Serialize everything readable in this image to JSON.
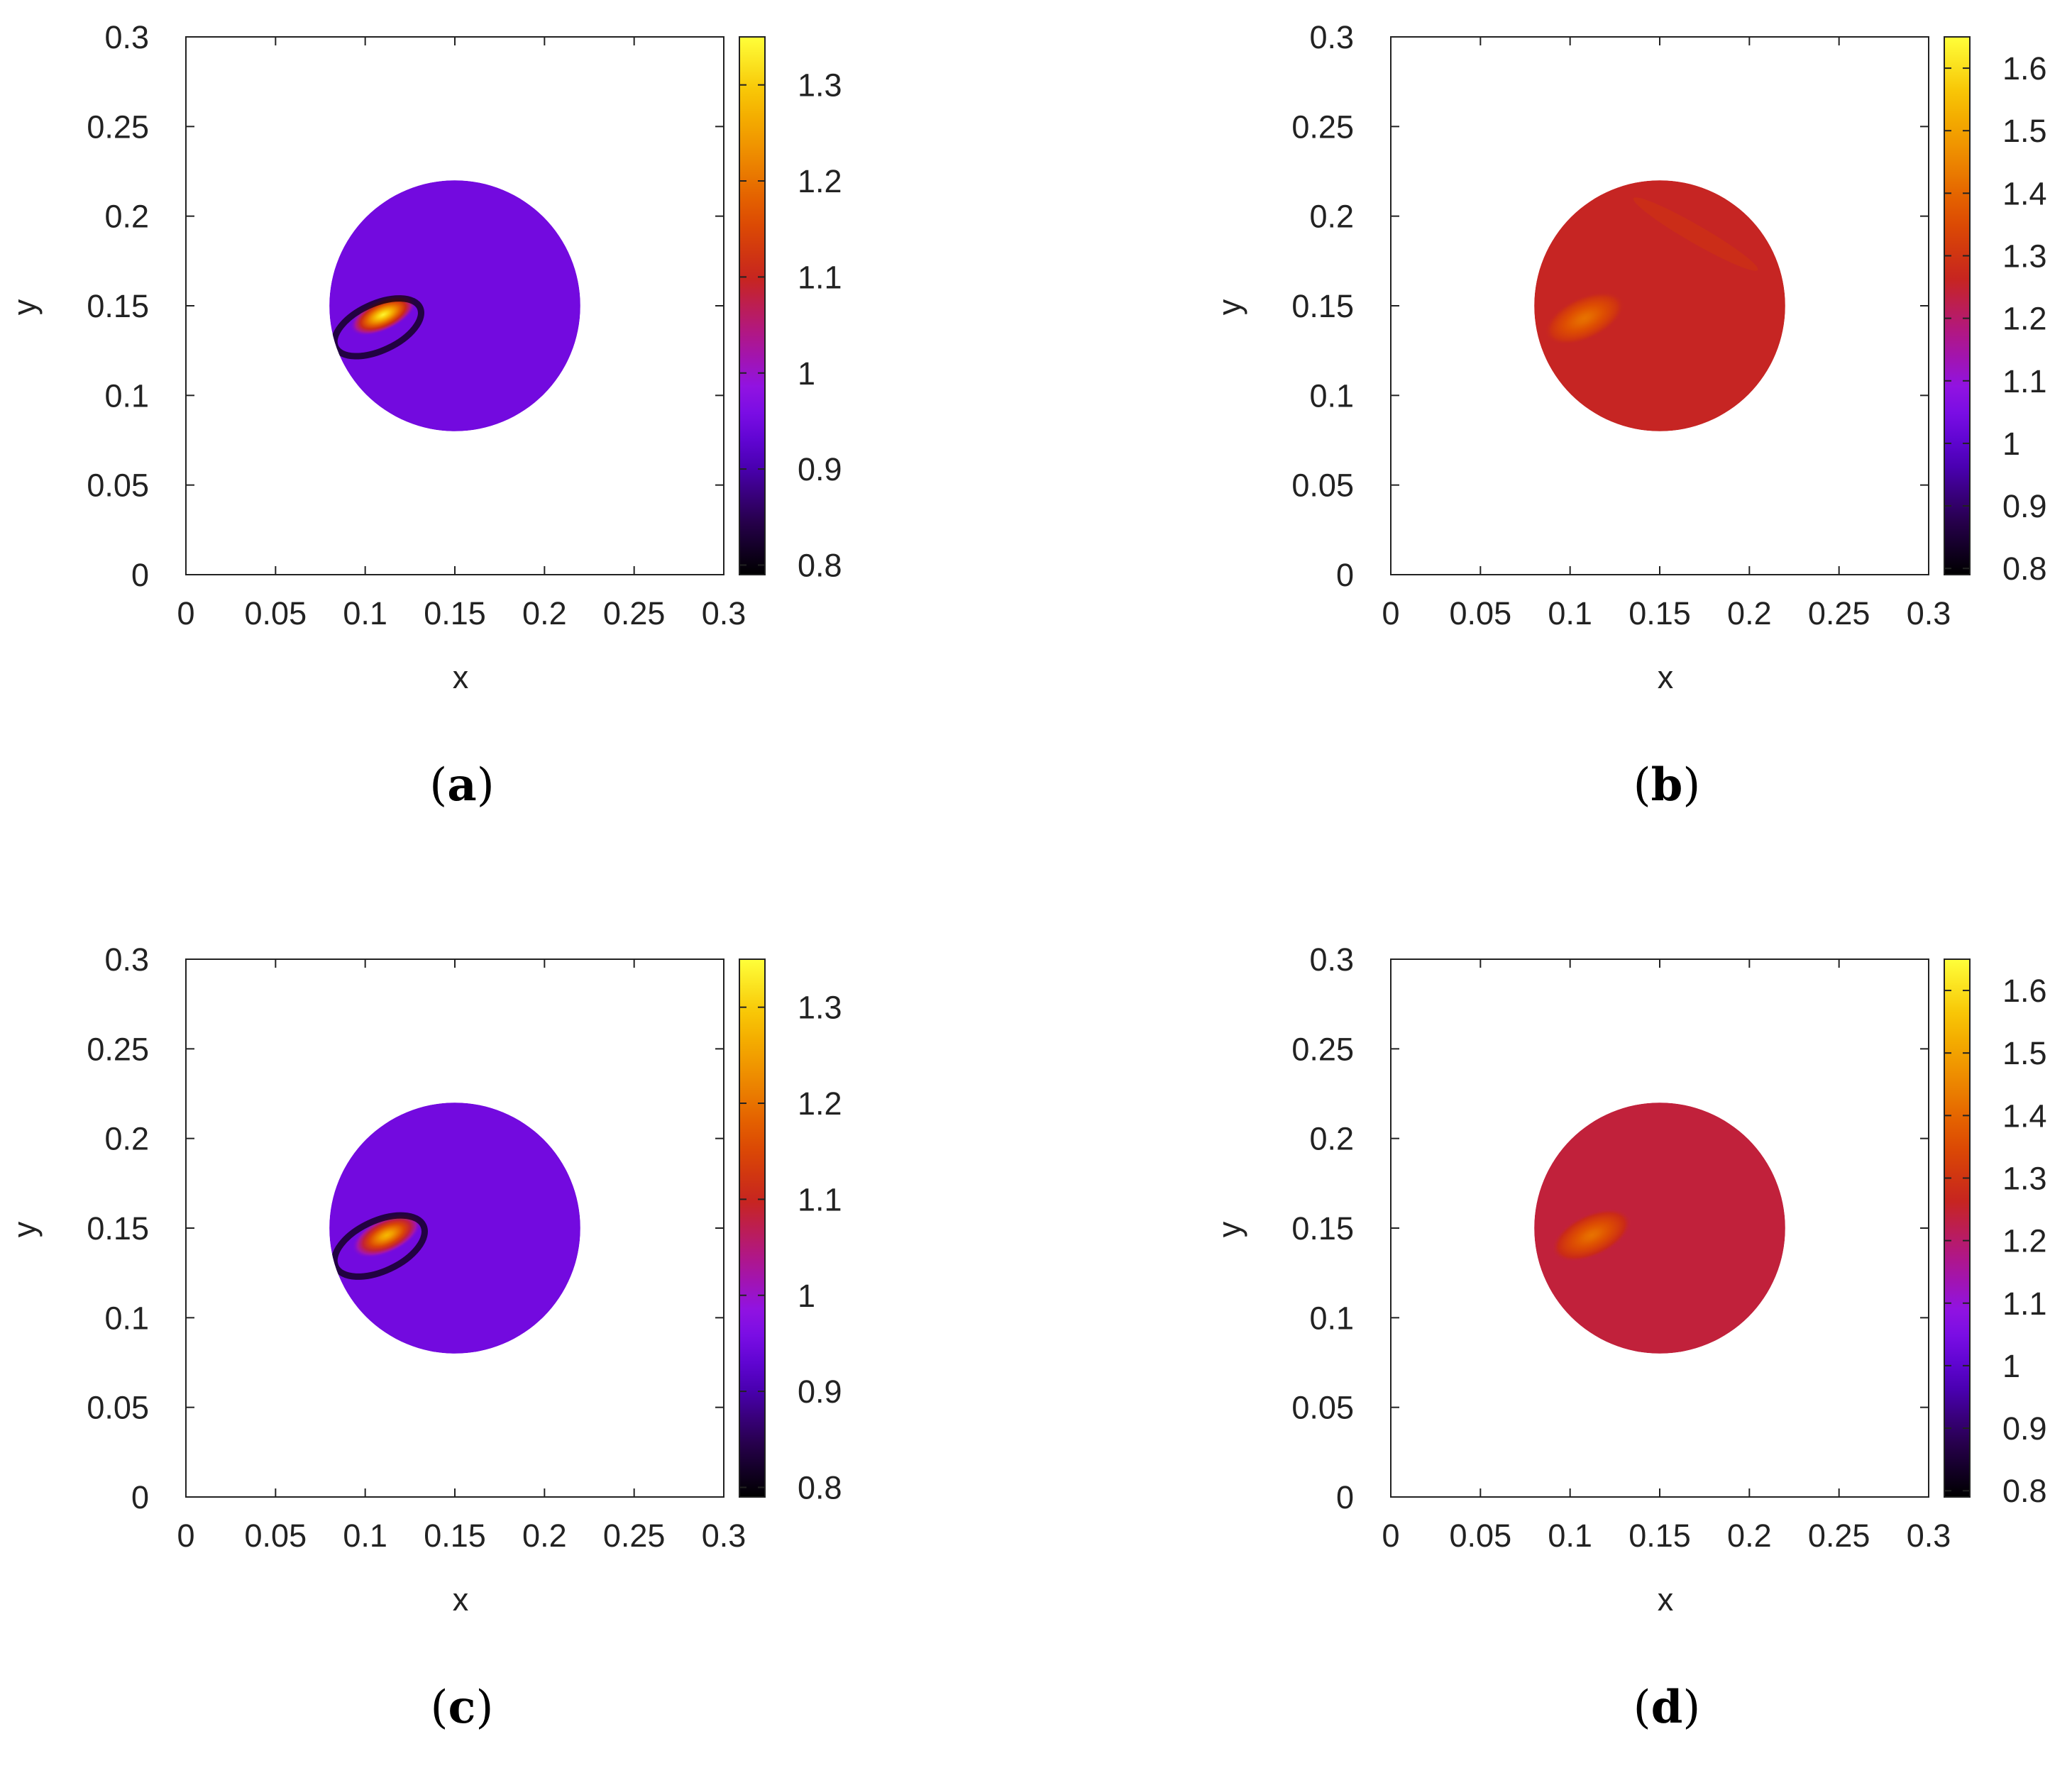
{
  "figure": {
    "panels": [
      {
        "id": "a",
        "caption_open": "(",
        "caption_letter": "a",
        "caption_close": ")",
        "colorbar_ticks": [
          "0.8",
          "0.9",
          "1",
          "1.1",
          "1.2",
          "1.3"
        ],
        "chart_data": {
          "type": "heatmap",
          "title": "",
          "xlabel": "x",
          "ylabel": "y",
          "xlim": [
            0,
            0.3
          ],
          "ylim": [
            0,
            0.3
          ],
          "xticks": [
            "0",
            "0.05",
            "0.1",
            "0.15",
            "0.2",
            "0.25",
            "0.3"
          ],
          "yticks": [
            "0",
            "0.05",
            "0.1",
            "0.15",
            "0.2",
            "0.25",
            "0.3"
          ],
          "colorbar": {
            "min": 0.79,
            "max": 1.35,
            "ticks": [
              0.8,
              0.9,
              1.0,
              1.1,
              1.2,
              1.3
            ]
          },
          "domain": {
            "shape": "disk",
            "center": [
              0.15,
              0.15
            ],
            "radius": 0.07
          },
          "background_value": 0.95,
          "features": [
            {
              "kind": "elliptical-blob",
              "center": [
                0.11,
                0.145
              ],
              "semi_axes": [
                0.02,
                0.009
              ],
              "angle_deg": 25,
              "peak_value": 1.34
            },
            {
              "kind": "dark-rim",
              "center": [
                0.107,
                0.138
              ],
              "semi_axes": [
                0.026,
                0.013
              ],
              "angle_deg": 25,
              "value": 0.8
            }
          ]
        }
      },
      {
        "id": "b",
        "caption_open": "(",
        "caption_letter": "b",
        "caption_close": ")",
        "colorbar_ticks": [
          "0.8",
          "0.9",
          "1",
          "1.1",
          "1.2",
          "1.3",
          "1.4",
          "1.5",
          "1.6"
        ],
        "chart_data": {
          "type": "heatmap",
          "title": "",
          "xlabel": "x",
          "ylabel": "y",
          "xlim": [
            0,
            0.3
          ],
          "ylim": [
            0,
            0.3
          ],
          "xticks": [
            "0",
            "0.05",
            "0.1",
            "0.15",
            "0.2",
            "0.25",
            "0.3"
          ],
          "yticks": [
            "0",
            "0.05",
            "0.1",
            "0.15",
            "0.2",
            "0.25",
            "0.3"
          ],
          "colorbar": {
            "min": 0.79,
            "max": 1.65,
            "ticks": [
              0.8,
              0.9,
              1.0,
              1.1,
              1.2,
              1.3,
              1.4,
              1.5,
              1.6
            ]
          },
          "domain": {
            "shape": "disk",
            "center": [
              0.15,
              0.15
            ],
            "radius": 0.07
          },
          "background_value": 1.26,
          "features": [
            {
              "kind": "elliptical-blob",
              "center": [
                0.108,
                0.143
              ],
              "semi_axes": [
                0.024,
                0.012
              ],
              "angle_deg": 25,
              "peak_value": 1.42
            },
            {
              "kind": "faint-streak",
              "center": [
                0.17,
                0.19
              ],
              "semi_axes": [
                0.04,
                0.005
              ],
              "angle_deg": -30,
              "value": 1.3
            }
          ]
        }
      },
      {
        "id": "c",
        "caption_open": "(",
        "caption_letter": "c",
        "caption_close": ")",
        "colorbar_ticks": [
          "0.8",
          "0.9",
          "1",
          "1.1",
          "1.2",
          "1.3"
        ],
        "chart_data": {
          "type": "heatmap",
          "title": "",
          "xlabel": "x",
          "ylabel": "y",
          "xlim": [
            0,
            0.3
          ],
          "ylim": [
            0,
            0.3
          ],
          "xticks": [
            "0",
            "0.05",
            "0.1",
            "0.15",
            "0.2",
            "0.25",
            "0.3"
          ],
          "yticks": [
            "0",
            "0.05",
            "0.1",
            "0.15",
            "0.2",
            "0.25",
            "0.3"
          ],
          "colorbar": {
            "min": 0.79,
            "max": 1.35,
            "ticks": [
              0.8,
              0.9,
              1.0,
              1.1,
              1.2,
              1.3
            ]
          },
          "domain": {
            "shape": "disk",
            "center": [
              0.15,
              0.15
            ],
            "radius": 0.07
          },
          "background_value": 0.95,
          "features": [
            {
              "kind": "elliptical-blob",
              "center": [
                0.112,
                0.146
              ],
              "semi_axes": [
                0.021,
                0.01
              ],
              "angle_deg": 25,
              "peak_value": 1.28
            },
            {
              "kind": "dark-rim",
              "center": [
                0.108,
                0.14
              ],
              "semi_axes": [
                0.027,
                0.014
              ],
              "angle_deg": 25,
              "value": 0.8
            }
          ]
        }
      },
      {
        "id": "d",
        "caption_open": "(",
        "caption_letter": "d",
        "caption_close": ")",
        "colorbar_ticks": [
          "0.8",
          "0.9",
          "1",
          "1.1",
          "1.2",
          "1.3",
          "1.4",
          "1.5",
          "1.6"
        ],
        "chart_data": {
          "type": "heatmap",
          "title": "",
          "xlabel": "x",
          "ylabel": "y",
          "xlim": [
            0,
            0.3
          ],
          "ylim": [
            0,
            0.3
          ],
          "xticks": [
            "0",
            "0.05",
            "0.1",
            "0.15",
            "0.2",
            "0.25",
            "0.3"
          ],
          "yticks": [
            "0",
            "0.05",
            "0.1",
            "0.15",
            "0.2",
            "0.25",
            "0.3"
          ],
          "colorbar": {
            "min": 0.79,
            "max": 1.65,
            "ticks": [
              0.8,
              0.9,
              1.0,
              1.1,
              1.2,
              1.3,
              1.4,
              1.5,
              1.6
            ]
          },
          "domain": {
            "shape": "disk",
            "center": [
              0.15,
              0.15
            ],
            "radius": 0.07
          },
          "background_value": 1.24,
          "features": [
            {
              "kind": "elliptical-blob",
              "center": [
                0.112,
                0.146
              ],
              "semi_axes": [
                0.024,
                0.012
              ],
              "angle_deg": 25,
              "peak_value": 1.42
            }
          ]
        }
      }
    ],
    "colors": {
      "palette": [
        "#000000",
        "#2b0055",
        "#5200c8",
        "#8b12f0",
        "#b0168a",
        "#c8261a",
        "#df5000",
        "#ee8a00",
        "#f7c000",
        "#ffff3a"
      ],
      "axis": "#222222",
      "background": "#ffffff"
    }
  }
}
